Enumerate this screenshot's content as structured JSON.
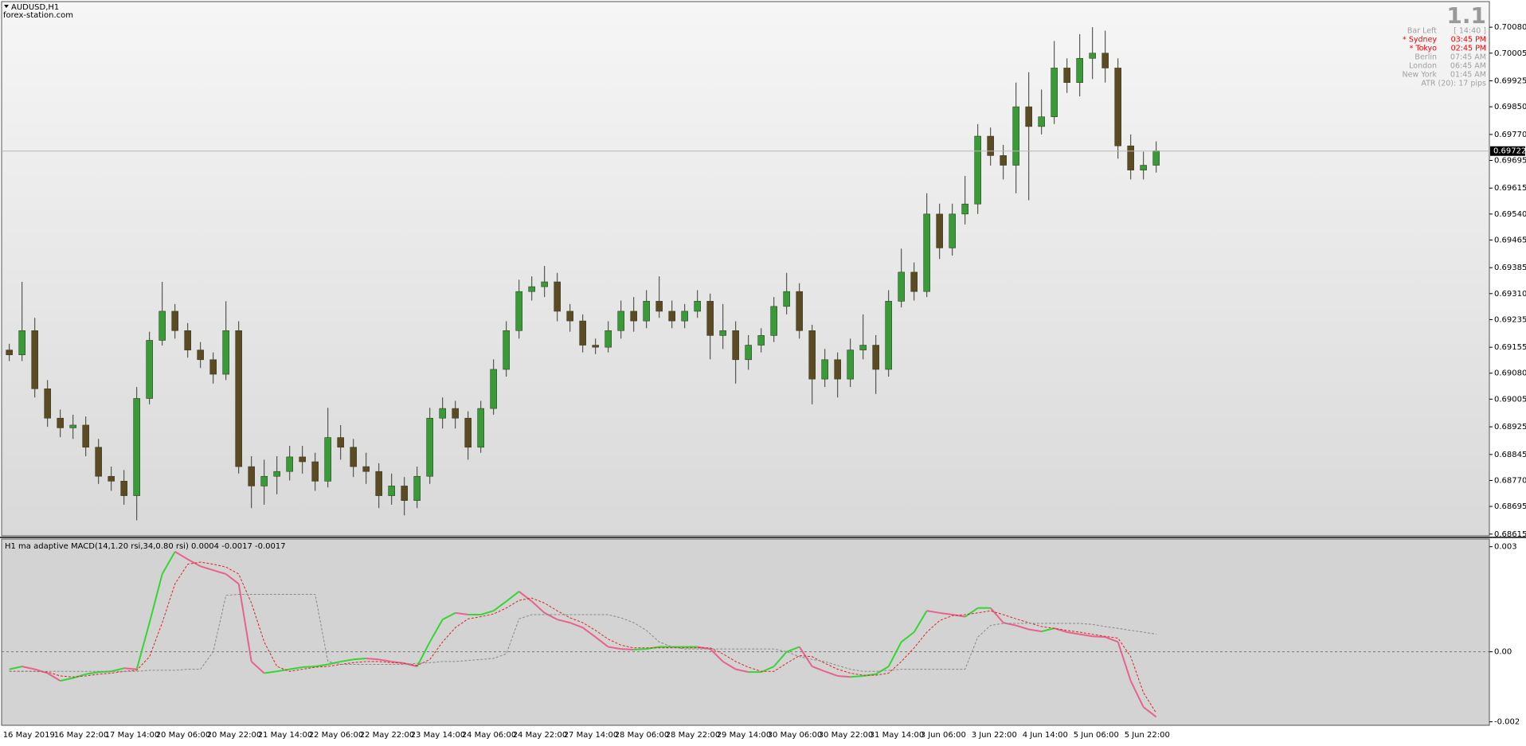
{
  "chart_data": [
    {
      "type": "candlestick",
      "title": "AUDUSD,H1",
      "subtitle": "forex-station.com",
      "categories": [
        "16 May 2019",
        null,
        null,
        null,
        "16 May 22:00",
        null,
        null,
        null,
        "17 May 14:00",
        null,
        null,
        null,
        "20 May 06:00",
        null,
        null,
        null,
        "20 May 22:00",
        null,
        null,
        null,
        "21 May 14:00",
        null,
        null,
        null,
        "22 May 06:00",
        null,
        null,
        null,
        "22 May 22:00",
        null,
        null,
        null,
        "23 May 14:00",
        null,
        null,
        null,
        "24 May 06:00",
        null,
        null,
        null,
        "24 May 22:00",
        null,
        null,
        null,
        "27 May 14:00",
        null,
        null,
        null,
        "28 May 06:00",
        null,
        null,
        null,
        "28 May 22:00",
        null,
        null,
        null,
        "29 May 14:00",
        null,
        null,
        null,
        "30 May 06:00",
        null,
        null,
        null,
        "30 May 22:00",
        null,
        null,
        null,
        "31 May 14:00",
        null,
        null,
        null,
        "3 Jun 06:00",
        null,
        null,
        null,
        "3 Jun 22:00",
        null,
        null,
        null,
        "4 Jun 14:00",
        null,
        null,
        null,
        "5 Jun 06:00",
        null,
        null,
        null,
        "5 Jun 22:00",
        null,
        null
      ],
      "open": [
        0.69147,
        0.69133,
        0.69203,
        0.69035,
        0.6895,
        0.68922,
        0.6893,
        0.68866,
        0.68782,
        0.68768,
        0.68726,
        0.69007,
        0.69175,
        0.69259,
        0.69203,
        0.69147,
        0.69119,
        0.69077,
        0.69203,
        0.6881,
        0.68754,
        0.68782,
        0.68796,
        0.68838,
        0.68824,
        0.68768,
        0.68894,
        0.68866,
        0.6881,
        0.68796,
        0.68726,
        0.68754,
        0.68712,
        0.68782,
        0.6895,
        0.68978,
        0.6895,
        0.68866,
        0.68978,
        0.69091,
        0.69203,
        0.69316,
        0.6933,
        0.69344,
        0.69259,
        0.69231,
        0.69161,
        0.69155,
        0.69203,
        0.69259,
        0.69231,
        0.69288,
        0.69259,
        0.69231,
        0.69259,
        0.69288,
        0.69189,
        0.69203,
        0.69119,
        0.69161,
        0.69189,
        0.69273,
        0.69316,
        0.69203,
        0.69063,
        0.69119,
        0.69063,
        0.69147,
        0.69161,
        0.69091,
        0.69288,
        0.69372,
        0.69316,
        0.6954,
        0.69442,
        0.6954,
        0.69569,
        0.69765,
        0.69709,
        0.69681,
        0.6985,
        0.69793,
        0.69821,
        0.69962,
        0.6992,
        0.6999,
        0.70005,
        0.69962,
        0.69737,
        0.69667,
        0.69681
      ],
      "high": [
        0.69165,
        0.69344,
        0.6924,
        0.6906,
        0.68975,
        0.6896,
        0.68955,
        0.6889,
        0.6881,
        0.688,
        0.6904,
        0.692,
        0.69344,
        0.6928,
        0.69225,
        0.6917,
        0.6914,
        0.69288,
        0.6923,
        0.6884,
        0.6883,
        0.6884,
        0.6887,
        0.6887,
        0.6885,
        0.6898,
        0.6893,
        0.6889,
        0.6885,
        0.6882,
        0.6879,
        0.6878,
        0.6881,
        0.6898,
        0.6901,
        0.69,
        0.6897,
        0.69,
        0.6912,
        0.6923,
        0.6935,
        0.6936,
        0.6939,
        0.6937,
        0.6928,
        0.6925,
        0.6918,
        0.6923,
        0.6929,
        0.693,
        0.6932,
        0.6936,
        0.6929,
        0.6928,
        0.6932,
        0.6931,
        0.6928,
        0.6923,
        0.6919,
        0.6921,
        0.693,
        0.6937,
        0.6934,
        0.6922,
        0.6915,
        0.6914,
        0.6918,
        0.6925,
        0.6919,
        0.6932,
        0.6944,
        0.694,
        0.696,
        0.6957,
        0.6957,
        0.6965,
        0.698,
        0.6979,
        0.6974,
        0.6992,
        0.6995,
        0.699,
        0.7004,
        0.6999,
        0.7006,
        0.7008,
        0.7007,
        0.6999,
        0.6977,
        0.6972,
        0.6975
      ],
      "low": [
        0.69115,
        0.69115,
        0.6901,
        0.68925,
        0.68895,
        0.6889,
        0.6884,
        0.6876,
        0.6874,
        0.687,
        0.68655,
        0.6899,
        0.6916,
        0.6918,
        0.69125,
        0.69095,
        0.6905,
        0.6906,
        0.6879,
        0.6869,
        0.687,
        0.6873,
        0.6877,
        0.6879,
        0.6874,
        0.6875,
        0.6883,
        0.6878,
        0.6876,
        0.6869,
        0.687,
        0.68669,
        0.6869,
        0.6876,
        0.6892,
        0.6892,
        0.6883,
        0.6885,
        0.6896,
        0.6907,
        0.6918,
        0.6929,
        0.693,
        0.6923,
        0.692,
        0.6914,
        0.69135,
        0.6914,
        0.6918,
        0.692,
        0.6921,
        0.6924,
        0.6921,
        0.6921,
        0.6924,
        0.6912,
        0.6915,
        0.6905,
        0.6909,
        0.6914,
        0.6917,
        0.6925,
        0.6918,
        0.6899,
        0.6904,
        0.6901,
        0.6904,
        0.6912,
        0.6902,
        0.6907,
        0.6927,
        0.6929,
        0.693,
        0.6941,
        0.6942,
        0.6951,
        0.6954,
        0.6968,
        0.6964,
        0.696,
        0.6958,
        0.6977,
        0.698,
        0.6989,
        0.6988,
        0.6993,
        0.6992,
        0.697,
        0.6964,
        0.6964,
        0.6966
      ],
      "close": [
        0.69133,
        0.69203,
        0.69035,
        0.6895,
        0.68922,
        0.6893,
        0.68866,
        0.68782,
        0.68768,
        0.68726,
        0.69007,
        0.69175,
        0.69259,
        0.69203,
        0.69147,
        0.69119,
        0.69077,
        0.69203,
        0.6881,
        0.68754,
        0.68782,
        0.68796,
        0.68838,
        0.68824,
        0.68768,
        0.68894,
        0.68866,
        0.6881,
        0.68796,
        0.68726,
        0.68754,
        0.68712,
        0.68782,
        0.6895,
        0.68978,
        0.6895,
        0.68866,
        0.68978,
        0.69091,
        0.69203,
        0.69316,
        0.6933,
        0.69344,
        0.69259,
        0.69231,
        0.69161,
        0.69155,
        0.69203,
        0.69259,
        0.69231,
        0.69288,
        0.69259,
        0.69231,
        0.69259,
        0.69288,
        0.69189,
        0.69203,
        0.69119,
        0.69161,
        0.69189,
        0.69273,
        0.69316,
        0.69203,
        0.69063,
        0.69119,
        0.69063,
        0.69147,
        0.69161,
        0.69091,
        0.69288,
        0.69372,
        0.69316,
        0.6954,
        0.69442,
        0.6954,
        0.69569,
        0.69765,
        0.69709,
        0.69681,
        0.6985,
        0.69793,
        0.69821,
        0.69962,
        0.6992,
        0.6999,
        0.70005,
        0.69962,
        0.69737,
        0.69667,
        0.69681,
        0.69723
      ],
      "up_color": "#3a9a3a",
      "down_color": "#5b4b22",
      "wick_color": "#3d3d22",
      "ylim": [
        0.6861,
        0.70154
      ],
      "yticks": [
        {
          "value": 0.7008,
          "label": "0.70080"
        },
        {
          "value": 0.70005,
          "label": "0.70005"
        },
        {
          "value": 0.69925,
          "label": "0.69925"
        },
        {
          "value": 0.6985,
          "label": "0.69850"
        },
        {
          "value": 0.6977,
          "label": "0.69770"
        },
        {
          "value": 0.69695,
          "label": "0.69695"
        },
        {
          "value": 0.69615,
          "label": "0.69615"
        },
        {
          "value": 0.6954,
          "label": "0.69540"
        },
        {
          "value": 0.69465,
          "label": "0.69465"
        },
        {
          "value": 0.69385,
          "label": "0.69385"
        },
        {
          "value": 0.6931,
          "label": "0.69310"
        },
        {
          "value": 0.69235,
          "label": "0.69235"
        },
        {
          "value": 0.69155,
          "label": "0.69155"
        },
        {
          "value": 0.6908,
          "label": "0.69080"
        },
        {
          "value": 0.69005,
          "label": "0.69005"
        },
        {
          "value": 0.68925,
          "label": "0.68925"
        },
        {
          "value": 0.68845,
          "label": "0.68845"
        },
        {
          "value": 0.6877,
          "label": "0.68770"
        },
        {
          "value": 0.68695,
          "label": "0.68695"
        },
        {
          "value": 0.68615,
          "label": "0.68615"
        }
      ],
      "current_price": {
        "value": 0.69722,
        "label": "0.69722"
      },
      "grid": false,
      "info_panel": {
        "big_label": "1.1",
        "rows": [
          {
            "label": "Bar Left",
            "value": "[ 14:40 ]",
            "color": "#a0a0a0"
          },
          {
            "label": "* Sydney",
            "value": "03:45 PM",
            "color": "#ff0000"
          },
          {
            "label": "* Tokyo",
            "value": "02:45 PM",
            "color": "#ff0000"
          },
          {
            "label": "Berlin",
            "value": "07:45 AM",
            "color": "#a0a0a0"
          },
          {
            "label": "London",
            "value": "06:45 AM",
            "color": "#a0a0a0"
          },
          {
            "label": "New York",
            "value": "01:45 AM",
            "color": "#a0a0a0"
          }
        ],
        "footer": "ATR (20): 17 pips"
      }
    },
    {
      "type": "line",
      "title": "H1 ma adaptive MACD(14,1.20 rsi,34,0.80 rsi) 0.0004 -0.0017 -0.0017",
      "series": [
        {
          "color": "#33d633",
          "down_color": "#e8628c",
          "style": "solid",
          "values": [
            -0.0005,
            -0.00042,
            -0.0005,
            -0.00061,
            -0.00083,
            -0.00075,
            -0.00064,
            -0.00058,
            -0.00056,
            -0.00047,
            -0.0005,
            0.00083,
            0.00222,
            0.00286,
            0.00264,
            0.00244,
            0.00233,
            0.00222,
            0.00194,
            -0.00028,
            -0.00061,
            -0.00056,
            -0.0005,
            -0.00044,
            -0.00042,
            -0.00036,
            -0.00028,
            -0.00022,
            -0.00019,
            -0.00022,
            -0.00028,
            -0.00033,
            -0.00042,
            0.00028,
            0.00092,
            0.00111,
            0.00106,
            0.00106,
            0.00117,
            0.00144,
            0.00172,
            0.00144,
            0.00111,
            0.00092,
            0.00083,
            0.00069,
            0.00042,
            0.00014,
            8e-05,
            6e-05,
            8e-05,
            0.00014,
            0.00014,
            0.00014,
            0.00014,
            8e-05,
            -0.00028,
            -0.0005,
            -0.00058,
            -0.00058,
            -0.00042,
            0,
            0.00014,
            -0.00042,
            -0.00056,
            -0.00069,
            -0.00072,
            -0.00069,
            -0.00064,
            -0.00042,
            0.00028,
            0.00056,
            0.00117,
            0.00111,
            0.00106,
            0.001,
            0.00125,
            0.00125,
            0.00083,
            0.00075,
            0.00064,
            0.00058,
            0.00067,
            0.00056,
            0.0005,
            0.00044,
            0.00042,
            0.00028,
            -0.00083,
            -0.00158,
            -0.00186
          ]
        },
        {
          "color": "#e02424",
          "style": "dashed",
          "values": [
            -0.00056,
            -0.00056,
            -0.00056,
            -0.00058,
            -0.00069,
            -0.00072,
            -0.00069,
            -0.00064,
            -0.00061,
            -0.00056,
            -0.00053,
            -0.00014,
            0.00083,
            0.00194,
            0.0025,
            0.00256,
            0.0025,
            0.00242,
            0.00222,
            0.00139,
            0.00028,
            -0.00042,
            -0.00056,
            -0.0005,
            -0.00044,
            -0.00042,
            -0.00036,
            -0.00031,
            -0.00028,
            -0.00028,
            -0.00031,
            -0.00033,
            -0.00039,
            -0.00022,
            0.00028,
            0.00069,
            0.00094,
            0.001,
            0.00108,
            0.00125,
            0.00147,
            0.00153,
            0.00139,
            0.00117,
            0.00097,
            0.00083,
            0.00061,
            0.00036,
            0.00019,
            0.00011,
            0.00011,
            0.00011,
            0.00011,
            0.00011,
            0.00011,
            0.00011,
            -6e-05,
            -0.00028,
            -0.00044,
            -0.00056,
            -0.00056,
            -0.00033,
            -0.00011,
            -0.00014,
            -0.00033,
            -0.0005,
            -0.00061,
            -0.00067,
            -0.00067,
            -0.00061,
            -0.00028,
            0.00011,
            0.00056,
            0.00089,
            0.00103,
            0.00106,
            0.00111,
            0.00117,
            0.00106,
            0.00094,
            0.00083,
            0.00072,
            0.00067,
            0.00061,
            0.00056,
            0.0005,
            0.00044,
            0.00039,
            -0.00014,
            -0.00117,
            -0.00175
          ]
        },
        {
          "color": "#8a8a8a",
          "style": "dashed",
          "values": [
            -0.00056,
            -0.00056,
            -0.00056,
            -0.00056,
            -0.00056,
            -0.00056,
            -0.00056,
            -0.00056,
            -0.00056,
            -0.00056,
            -0.00056,
            -0.00053,
            -0.00053,
            -0.00053,
            -0.0005,
            -0.0005,
            0,
            0.00161,
            0.00164,
            0.00164,
            0.00164,
            0.00164,
            0.00164,
            0.00164,
            0.00164,
            -0.00028,
            -0.00036,
            -0.00036,
            -0.00036,
            -0.00036,
            -0.00036,
            -0.00036,
            -0.00033,
            -0.00031,
            -0.00028,
            -0.00028,
            -0.00025,
            -0.00022,
            -0.00019,
            -6e-05,
            0.00094,
            0.00106,
            0.00106,
            0.00106,
            0.00106,
            0.00106,
            0.00106,
            0.00106,
            0.00097,
            0.00083,
            0.00061,
            0.00028,
            0.00014,
            8e-05,
            8e-05,
            8e-05,
            8e-05,
            8e-05,
            8e-05,
            8e-05,
            8e-05,
            0,
            -0.00014,
            -0.00022,
            -0.00028,
            -0.00039,
            -0.0005,
            -0.00056,
            -0.00056,
            -0.00053,
            -0.0005,
            -0.0005,
            -0.0005,
            -0.0005,
            -0.0005,
            -0.0005,
            0.00042,
            0.00075,
            0.00081,
            0.00081,
            0.00081,
            0.00081,
            0.00081,
            0.00081,
            0.00081,
            0.00078,
            0.00072,
            0.00067,
            0.00061,
            0.00056,
            0.0005
          ]
        }
      ],
      "ylim": [
        -0.0021,
        0.00322
      ],
      "yticks": [
        0.003,
        {
          "value": 0,
          "label": "0.00"
        },
        -0.002
      ],
      "zero_line": true
    }
  ]
}
